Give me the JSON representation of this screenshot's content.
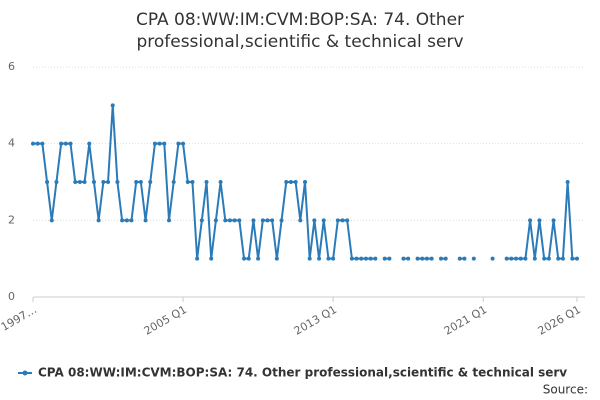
{
  "chart_data": {
    "type": "line",
    "title": [
      "CPA 08:WW:IM:CVM:BOP:SA: 74. Other",
      "professional,scientific & technical serv"
    ],
    "categories": [
      "1997…",
      null,
      null,
      null,
      null,
      null,
      null,
      null,
      null,
      null,
      null,
      null,
      null,
      null,
      null,
      null,
      null,
      null,
      null,
      null,
      null,
      null,
      null,
      null,
      null,
      null,
      null,
      null,
      null,
      null,
      null,
      null,
      "2005 Q1",
      null,
      null,
      null,
      null,
      null,
      null,
      null,
      null,
      null,
      null,
      null,
      null,
      null,
      null,
      null,
      null,
      null,
      null,
      null,
      null,
      null,
      null,
      null,
      null,
      null,
      null,
      null,
      null,
      null,
      null,
      null,
      "2013 Q1",
      null,
      null,
      null,
      null,
      null,
      null,
      null,
      null,
      null,
      null,
      null,
      null,
      null,
      null,
      null,
      null,
      null,
      null,
      null,
      null,
      null,
      null,
      null,
      null,
      null,
      null,
      null,
      null,
      null,
      null,
      null,
      "2021 Q1",
      null,
      null,
      null,
      null,
      null,
      null,
      null,
      null,
      null,
      null,
      null,
      null,
      null,
      null,
      null,
      null,
      null,
      null,
      null,
      "2026 Q1"
    ],
    "series": [
      {
        "name": "CPA 08:WW:IM:CVM:BOP:SA: 74. Other professional,scientific & technical serv",
        "color": "#2b7bb9",
        "values": [
          4,
          4,
          4,
          3,
          2,
          3,
          4,
          4,
          4,
          3,
          3,
          3,
          4,
          3,
          2,
          3,
          3,
          5,
          3,
          2,
          2,
          2,
          3,
          3,
          2,
          3,
          4,
          4,
          4,
          2,
          3,
          4,
          4,
          3,
          3,
          1,
          2,
          3,
          1,
          2,
          3,
          2,
          2,
          2,
          2,
          1,
          1,
          2,
          1,
          2,
          2,
          2,
          1,
          2,
          3,
          3,
          3,
          2,
          3,
          1,
          2,
          1,
          2,
          1,
          1,
          2,
          2,
          2,
          1,
          1,
          1,
          1,
          1,
          1,
          null,
          1,
          1,
          null,
          null,
          1,
          1,
          null,
          1,
          1,
          1,
          1,
          null,
          1,
          1,
          null,
          null,
          1,
          1,
          null,
          1,
          null,
          null,
          null,
          1,
          null,
          null,
          1,
          1,
          1,
          1,
          1,
          2,
          1,
          2,
          1,
          1,
          2,
          1,
          1,
          3,
          1,
          1
        ]
      }
    ],
    "ylim": [
      0,
      6
    ],
    "yticks": [
      0,
      2,
      4,
      6
    ],
    "grid": true,
    "source_label": "Source:"
  }
}
